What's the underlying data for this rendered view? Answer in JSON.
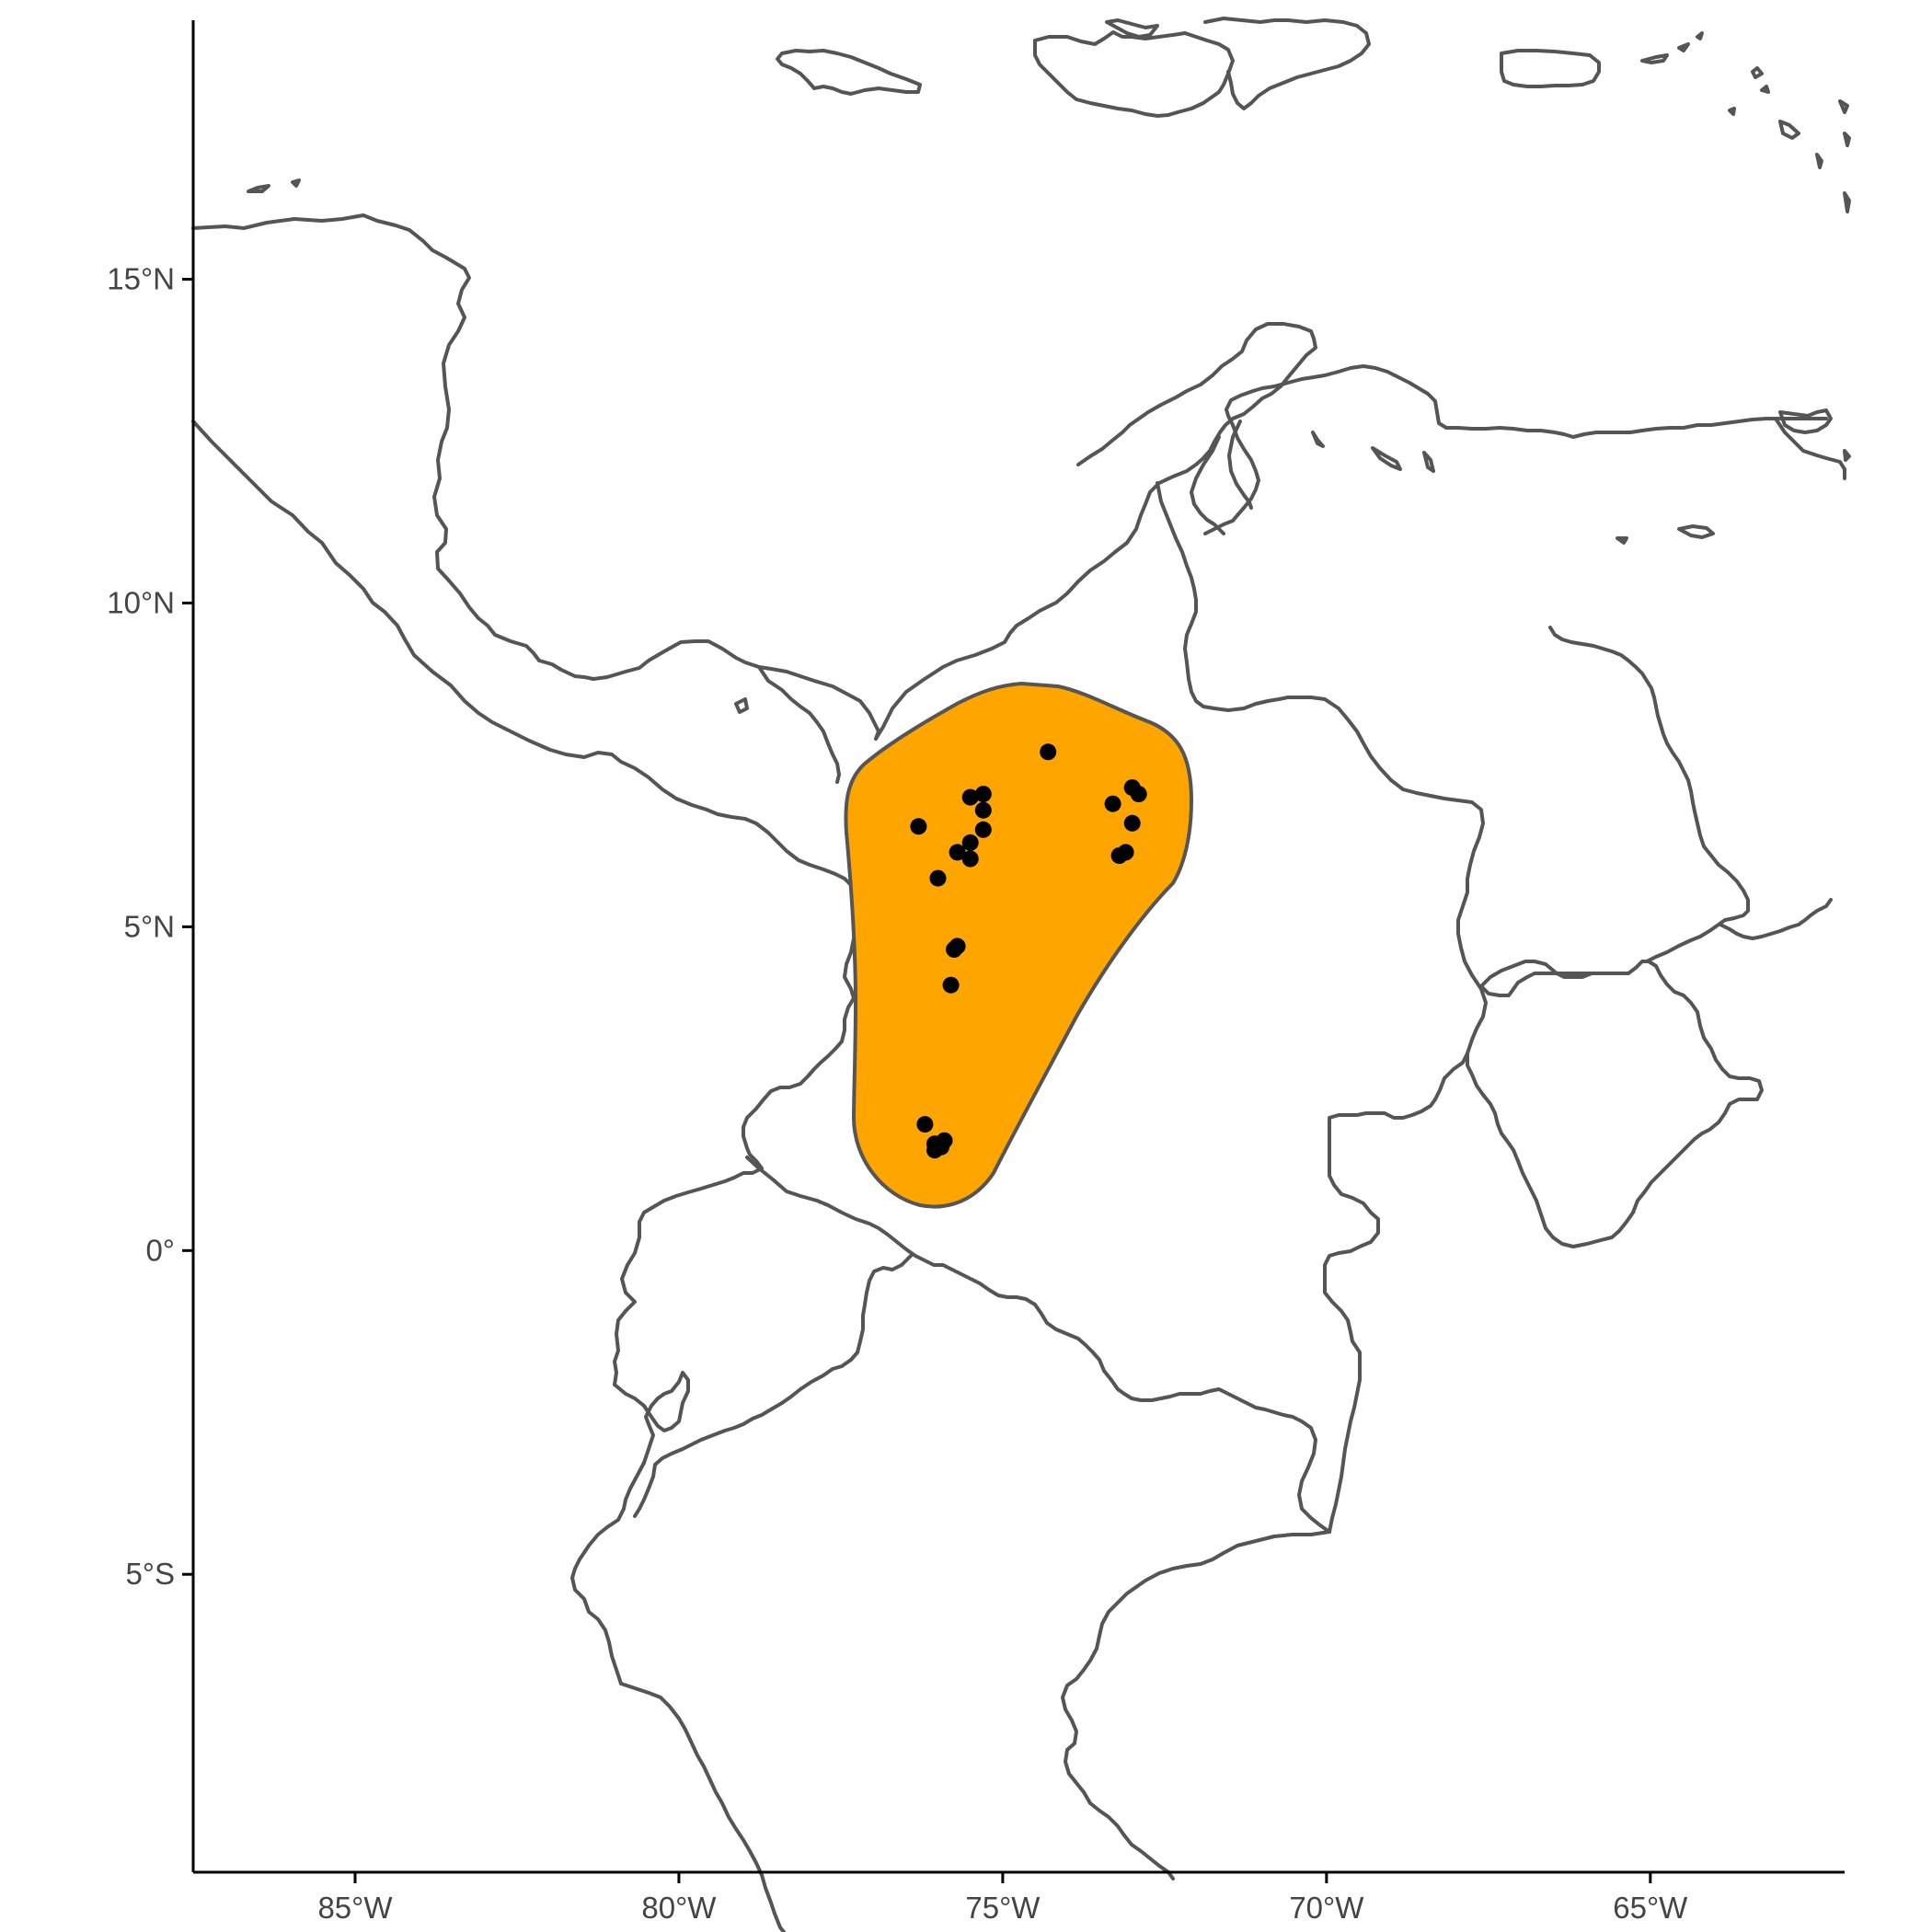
{
  "map": {
    "x_ticks": [
      {
        "lon": -85,
        "label": "85°W"
      },
      {
        "lon": -80,
        "label": "80°W"
      },
      {
        "lon": -75,
        "label": "75°W"
      },
      {
        "lon": -70,
        "label": "70°W"
      },
      {
        "lon": -65,
        "label": "65°W"
      }
    ],
    "y_ticks": [
      {
        "lat": 15,
        "label": "15°N"
      },
      {
        "lat": 10,
        "label": "10°N"
      },
      {
        "lat": 5,
        "label": "5°N"
      },
      {
        "lat": 0,
        "label": "0°"
      },
      {
        "lat": -5,
        "label": "5°S"
      }
    ],
    "lon_range": [
      -87.5,
      -62
    ],
    "lat_range": [
      -9.6,
      19
    ],
    "colors": {
      "range_fill": "#ffa500",
      "outline": "#555555",
      "points": "#000000",
      "background": "#ffffff"
    },
    "occurrences": [
      [
        -76.3,
        6.55
      ],
      [
        -74.3,
        7.7
      ],
      [
        -75.5,
        7.0
      ],
      [
        -75.3,
        7.05
      ],
      [
        -75.3,
        6.8
      ],
      [
        -75.3,
        6.5
      ],
      [
        -75.5,
        6.3
      ],
      [
        -75.7,
        6.15
      ],
      [
        -75.5,
        6.05
      ],
      [
        -76.0,
        5.75
      ],
      [
        -75.7,
        4.7
      ],
      [
        -75.75,
        4.65
      ],
      [
        -75.8,
        4.1
      ],
      [
        -73.3,
        6.9
      ],
      [
        -73.0,
        7.15
      ],
      [
        -72.9,
        7.05
      ],
      [
        -73.0,
        6.6
      ],
      [
        -73.1,
        6.15
      ],
      [
        -73.2,
        6.1
      ],
      [
        -76.2,
        1.95
      ],
      [
        -76.05,
        1.65
      ],
      [
        -75.9,
        1.7
      ],
      [
        -75.95,
        1.6
      ],
      [
        -76.05,
        1.55
      ]
    ]
  }
}
